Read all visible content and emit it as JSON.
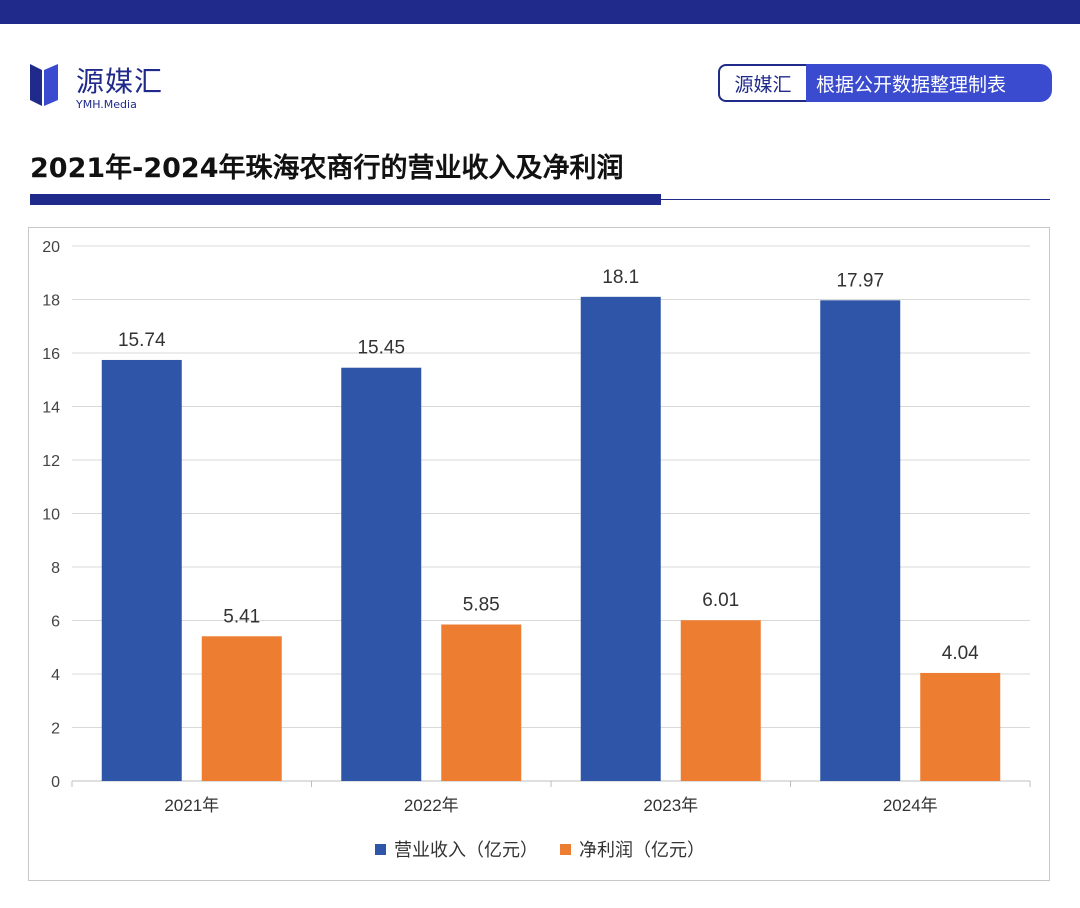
{
  "header": {
    "logo_name": "源媒汇",
    "logo_sub": "YMH.Media",
    "source_brand": "源媒汇",
    "source_text": "根据公开数据整理制表"
  },
  "title": "2021年-2024年珠海农商行的营业收入及净利润",
  "colors": {
    "brand": "#1f2a8a",
    "revenue": "#2f55a8",
    "profit": "#ed7d31",
    "grid": "#d9d9d9"
  },
  "chart_data": {
    "type": "bar",
    "categories": [
      "2021年",
      "2022年",
      "2023年",
      "2024年"
    ],
    "series": [
      {
        "name": "营业收入（亿元）",
        "values": [
          15.74,
          15.45,
          18.1,
          17.97
        ],
        "labels": [
          "15.74",
          "15.45",
          "18.1",
          "17.97"
        ],
        "color": "#2f55a8"
      },
      {
        "name": "净利润（亿元）",
        "values": [
          5.41,
          5.85,
          6.01,
          4.04
        ],
        "labels": [
          "5.41",
          "5.85",
          "6.01",
          "4.04"
        ],
        "color": "#ed7d31"
      }
    ],
    "ylim": [
      0,
      20
    ],
    "yticks": [
      0,
      2,
      4,
      6,
      8,
      10,
      12,
      14,
      16,
      18,
      20
    ],
    "grid": true,
    "legend": "bottom"
  }
}
